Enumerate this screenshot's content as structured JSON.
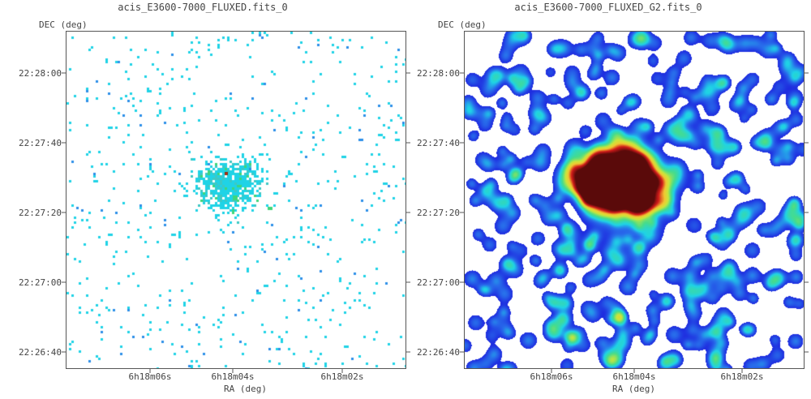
{
  "panels": [
    {
      "title": "acis_E3600-7000_FLUXED.fits_0",
      "dec_label": "DEC (deg)",
      "ra_label": "RA (deg)",
      "y_ticks": [
        "22:28:00",
        "22:27:40",
        "22:27:20",
        "22:27:00",
        "22:26:40"
      ],
      "x_ticks": [
        "6h18m06s",
        "6h18m04s",
        "6h18m02s"
      ],
      "style": "sparse"
    },
    {
      "title": "acis_E3600-7000_FLUXED_G2.fits_0",
      "dec_label": "DEC (deg)",
      "ra_label": "RA (deg)",
      "y_ticks": [
        "22:28:00",
        "22:27:40",
        "22:27:20",
        "22:27:00",
        "22:26:40"
      ],
      "x_ticks": [
        "6h18m06s",
        "6h18m04s",
        "6h18m02s"
      ],
      "style": "smoothed"
    }
  ],
  "colors": {
    "background": "#ffffff",
    "low": "#1e2adf",
    "mid": "#1fd3e6",
    "high": "#f2e640",
    "peak": "#d11a1a",
    "frame": "#555555"
  }
}
